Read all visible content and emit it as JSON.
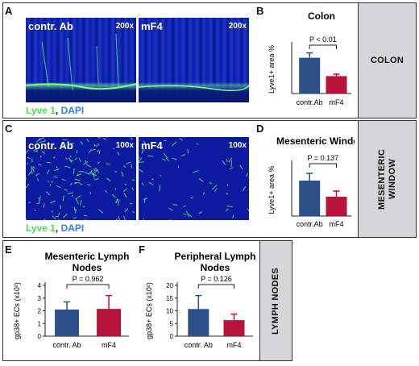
{
  "colon_section": {
    "label": "COLON",
    "panel_a": {
      "letter": "A",
      "images": [
        {
          "label": "contr. Ab",
          "mag": "200x"
        },
        {
          "label": "mF4",
          "mag": "200x"
        }
      ],
      "stain_green": "Lyve 1",
      "stain_sep": ", ",
      "stain_blue": "DAPI"
    },
    "panel_b": {
      "letter": "B"
    }
  },
  "mesenteric_section": {
    "label": "MESENTERIC WINDOW",
    "panel_c": {
      "letter": "C",
      "images": [
        {
          "label": "contr. Ab",
          "mag": "100x"
        },
        {
          "label": "mF4",
          "mag": "100x"
        }
      ],
      "stain_green": "Lyve 1",
      "stain_sep": ", ",
      "stain_blue": "DAPI"
    },
    "panel_d": {
      "letter": "D"
    }
  },
  "lymph_section": {
    "label": "LYMPH NODES",
    "panel_e": {
      "letter": "E"
    },
    "panel_f": {
      "letter": "F"
    }
  },
  "colors": {
    "control": "#2e5088",
    "treatment": "#b8133a",
    "micro_bg": "#0a1aa0"
  },
  "chart_data": [
    {
      "id": "B",
      "type": "bar",
      "title": "Colon",
      "ylabel": "Lyve1+ area %",
      "categories": [
        "contr.Ab",
        "mF4"
      ],
      "values": [
        3.7,
        1.8
      ],
      "errors": [
        0.5,
        0.2
      ],
      "ylim": [
        0,
        5
      ],
      "pvalue": "P < 0.01"
    },
    {
      "id": "D",
      "type": "bar",
      "title": "Mesenteric Window",
      "ylabel": "Lyve1+ area %",
      "categories": [
        "contr.Ab",
        "mF4"
      ],
      "values": [
        4.4,
        2.4
      ],
      "errors": [
        0.9,
        0.7
      ],
      "ylim": [
        0,
        6.5
      ],
      "pvalue": "P = 0.137"
    },
    {
      "id": "E",
      "type": "bar",
      "title": "Mesenteric Lymph Nodes",
      "ylabel": "gp38+ ECs (x10²)",
      "categories": [
        "contr. Ab",
        "mF4"
      ],
      "values": [
        2.1,
        2.15
      ],
      "errors": [
        0.6,
        1.05
      ],
      "ylim": [
        0,
        4
      ],
      "yticks": [
        0,
        1,
        2,
        3,
        4
      ],
      "pvalue": "P = 0.962"
    },
    {
      "id": "F",
      "type": "bar",
      "title": "Peripheral Lymph Nodes",
      "ylabel": "gp38+ ECs (x10²)",
      "categories": [
        "contr. Ab",
        "mF4"
      ],
      "values": [
        10.7,
        6.3
      ],
      "errors": [
        5.3,
        2.4
      ],
      "ylim": [
        0,
        20
      ],
      "yticks": [
        0,
        5,
        10,
        15,
        20
      ],
      "pvalue": "P = 0.126"
    }
  ]
}
